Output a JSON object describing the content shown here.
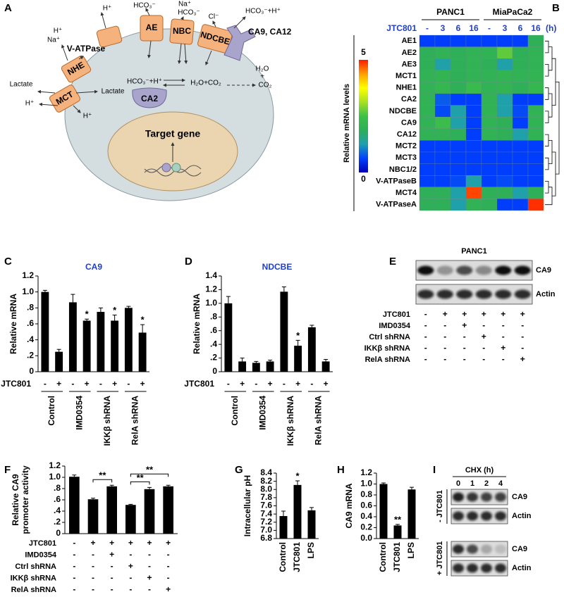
{
  "chart_data": [
    {
      "type": "heatmap",
      "panel": "B",
      "groups": [
        "PANC1",
        "MiaPaCa2"
      ],
      "row_label": "JTC801",
      "categories": [
        "-",
        "3",
        "6",
        "16",
        "-",
        "3",
        "6",
        "16"
      ],
      "unit": "(h)",
      "label_color": "#1f3fcc",
      "rows": [
        "AE1",
        "AE2",
        "AE3",
        "MCT1",
        "NHE1",
        "CA2",
        "NDCBE",
        "CA9",
        "CA12",
        "MCT2",
        "MCT3",
        "NBC1/2",
        "V-ATPaseB",
        "MCT4",
        "V-ATPaseA"
      ],
      "values": [
        [
          0.6,
          0.6,
          0.6,
          0.6,
          0.6,
          0.6,
          0.6,
          1.9
        ],
        [
          1.9,
          2.0,
          1.9,
          2.0,
          2.0,
          2.7,
          1.9,
          2.0
        ],
        [
          1.9,
          1.3,
          1.9,
          2.0,
          1.9,
          1.3,
          1.9,
          2.0
        ],
        [
          2.0,
          2.1,
          1.9,
          2.0,
          2.0,
          2.1,
          2.0,
          2.1
        ],
        [
          2.0,
          2.2,
          1.9,
          2.3,
          2.0,
          2.1,
          1.9,
          2.2
        ],
        [
          2.0,
          0.8,
          0.6,
          0.6,
          2.0,
          1.3,
          0.6,
          0.6
        ],
        [
          2.0,
          0.7,
          1.3,
          0.6,
          2.0,
          1.3,
          0.7,
          2.0
        ],
        [
          2.0,
          2.4,
          1.3,
          0.6,
          2.0,
          1.9,
          0.6,
          2.0
        ],
        [
          2.0,
          2.0,
          1.9,
          0.6,
          2.0,
          1.9,
          1.3,
          2.0
        ],
        [
          0.6,
          0.6,
          0.6,
          0.6,
          0.6,
          0.6,
          0.6,
          0.6
        ],
        [
          0.6,
          0.6,
          0.6,
          0.6,
          0.6,
          0.6,
          0.6,
          0.6
        ],
        [
          0.6,
          0.6,
          0.6,
          0.6,
          0.6,
          0.6,
          0.6,
          0.6
        ],
        [
          0.6,
          0.6,
          0.7,
          1.3,
          0.6,
          0.7,
          0.6,
          0.6
        ],
        [
          1.9,
          1.9,
          1.3,
          4.8,
          1.9,
          1.9,
          1.3,
          1.9
        ],
        [
          1.9,
          1.9,
          1.3,
          2.0,
          1.9,
          0.6,
          0.6,
          4.9
        ]
      ],
      "colorbar_label": "Relative mRNA levels",
      "zlim": [
        0,
        5
      ],
      "zticks": [
        0,
        5
      ],
      "colorscale": [
        "#0000b4",
        "#0040ff",
        "#1f9fb0",
        "#2eae58",
        "#3cc048",
        "#a6e022",
        "#ffff00",
        "#ffa000",
        "#ff1a00"
      ]
    },
    {
      "type": "bar",
      "panel": "C",
      "title": "CA9",
      "title_color": "#1f3fcc",
      "ylabel": [
        "Relative mRNA"
      ],
      "color": "#000000",
      "ylim": [
        0,
        1.2
      ],
      "yticks": [
        0,
        {
          "value": 0.2,
          "label": ".2"
        },
        {
          "value": 0.4,
          "label": ".4"
        },
        {
          "value": 0.6,
          "label": ".6"
        },
        {
          "value": 0.8,
          "label": ".8"
        },
        {
          "value": 1,
          "label": "1.0"
        },
        1.2
      ],
      "row_label": "JTC801",
      "categories": [
        "-",
        "+",
        "-",
        "+",
        "-",
        "+",
        "-",
        "+"
      ],
      "groups": [
        "Control",
        "IMD0354",
        "IKKβ shRNA",
        "RelA shRNA"
      ],
      "values": [
        1.0,
        0.25,
        0.87,
        0.64,
        0.75,
        0.64,
        0.8,
        0.49
      ],
      "errors": [
        0.02,
        0.03,
        0.1,
        0.02,
        0.05,
        0.07,
        0.02,
        0.1
      ],
      "annotations": [
        {
          "bar": 3,
          "text": "*"
        },
        {
          "bar": 5,
          "text": "*"
        },
        {
          "bar": 7,
          "text": "*"
        }
      ]
    },
    {
      "type": "bar",
      "panel": "D",
      "title": "NDCBE",
      "title_color": "#1f3fcc",
      "ylabel": [
        "Relative mRNA"
      ],
      "color": "#000000",
      "ylim": [
        0,
        1.4
      ],
      "yticks": [
        0,
        {
          "value": 0.2,
          "label": ".2"
        },
        {
          "value": 0.4,
          "label": ".4"
        },
        {
          "value": 0.6,
          "label": ".6"
        },
        {
          "value": 0.8,
          "label": ".8"
        },
        {
          "value": 1,
          "label": "1.0"
        },
        1.2,
        1.4
      ],
      "row_label": "JTC801",
      "categories": [
        "-",
        "+",
        "-",
        "+",
        "-",
        "+",
        "-",
        "+"
      ],
      "groups": [
        "Control",
        "IMD0354",
        "IKKβ shRNA",
        "RelA shRNA"
      ],
      "values": [
        1.0,
        0.15,
        0.13,
        0.15,
        1.17,
        0.38,
        0.65,
        0.15
      ],
      "errors": [
        0.1,
        0.05,
        0.02,
        0.02,
        0.07,
        0.08,
        0.03,
        0.03
      ],
      "annotations": [
        {
          "bar": 5,
          "text": "*"
        }
      ]
    },
    {
      "type": "bar",
      "panel": "F",
      "ylabel": [
        "Relative CA9",
        "promoter activity"
      ],
      "color": "#000000",
      "ylim": [
        0,
        1.2
      ],
      "yticks": [
        0,
        {
          "value": 0.2,
          "label": ".2"
        },
        {
          "value": 0.4,
          "label": ".4"
        },
        {
          "value": 0.6,
          "label": ".6"
        },
        {
          "value": 0.8,
          "label": ".8"
        },
        {
          "value": 1,
          "label": "1.0"
        },
        1.2
      ],
      "values": [
        1.01,
        0.61,
        0.84,
        0.51,
        0.79,
        0.84
      ],
      "errors": [
        0.03,
        0.02,
        0.02,
        0.01,
        0.03,
        0.02
      ],
      "conditions": [
        {
          "name": "JTC801",
          "signs": [
            "-",
            "+",
            "+",
            "+",
            "+",
            "+"
          ]
        },
        {
          "name": "IMD0354",
          "signs": [
            "-",
            "-",
            "+",
            "-",
            "-",
            "-"
          ]
        },
        {
          "name": "Ctrl shRNA",
          "signs": [
            "-",
            "-",
            "-",
            "+",
            "-",
            "-"
          ]
        },
        {
          "name": "IKKβ shRNA",
          "signs": [
            "-",
            "-",
            "-",
            "-",
            "+",
            "-"
          ]
        },
        {
          "name": "RelA shRNA",
          "signs": [
            "-",
            "-",
            "-",
            "-",
            "-",
            "+"
          ]
        }
      ],
      "brackets": [
        {
          "from": 1,
          "to": 2,
          "text": "**"
        },
        {
          "from": 3,
          "to": 4,
          "text": "**"
        },
        {
          "from": 3,
          "to": 5,
          "text": "**"
        }
      ]
    },
    {
      "type": "bar",
      "panel": "G",
      "ylabel": [
        "Intracellular pH"
      ],
      "color": "#000000",
      "ylim": [
        6.8,
        8.4
      ],
      "yticks": [
        6.8,
        {
          "value": 7,
          "label": "7.0"
        },
        7.2,
        7.4,
        7.6,
        7.8,
        {
          "value": 8,
          "label": "8.0"
        },
        8.2,
        8.4
      ],
      "categories": [
        "Control",
        "JTC801",
        "LPS"
      ],
      "values": [
        7.35,
        8.11,
        7.49
      ],
      "errors": [
        0.12,
        0.1,
        0.07
      ],
      "annotations": [
        {
          "bar": 1,
          "text": "*"
        }
      ]
    },
    {
      "type": "bar",
      "panel": "H",
      "ylabel": [
        "CA9 mRNA"
      ],
      "color": "#000000",
      "ylim": [
        0,
        1.2
      ],
      "yticks": [
        {
          "value": 0,
          "label": "0.0"
        },
        0.2,
        0.4,
        0.6,
        0.8,
        {
          "value": 1,
          "label": "1.0"
        },
        1.2
      ],
      "categories": [
        "Control",
        "JTC801",
        "LPS"
      ],
      "values": [
        1.0,
        0.24,
        0.9
      ],
      "errors": [
        0.02,
        0.02,
        0.04
      ],
      "annotations": [
        {
          "bar": 1,
          "text": "**"
        }
      ]
    }
  ],
  "diagram": {
    "panel": "A",
    "labels": [
      "H⁺",
      "HCO₃⁻",
      "Na⁺",
      "HCO₃⁻",
      "Cl⁻",
      "HCO₃⁻+H⁺",
      "V-ATPase",
      "AE",
      "NBC",
      "NDCBE",
      "CA9, CA12",
      "H⁺",
      "Na⁺",
      "NHE",
      "Lactate",
      "H⁺",
      "MCT",
      "Lactate",
      "H⁺",
      "HCO₃⁻+H⁺",
      "H₂O+CO₂",
      "CA2",
      "H₂O",
      "+",
      "CO₂",
      "Target gene"
    ]
  },
  "blots": [
    {
      "panel": "E",
      "title": "PANC1",
      "bands": [
        "CA9",
        "Actin"
      ],
      "conditions": [
        {
          "name": "JTC801",
          "signs": [
            "-",
            "+",
            "+",
            "+",
            "+",
            "+"
          ]
        },
        {
          "name": "IMD0354",
          "signs": [
            "-",
            "-",
            "+",
            "-",
            "-",
            "-"
          ]
        },
        {
          "name": "Ctrl shRNA",
          "signs": [
            "-",
            "-",
            "-",
            "+",
            "-",
            "-"
          ]
        },
        {
          "name": "IKKβ shRNA",
          "signs": [
            "-",
            "-",
            "-",
            "-",
            "+",
            "-"
          ]
        },
        {
          "name": "RelA shRNA",
          "signs": [
            "-",
            "-",
            "-",
            "-",
            "-",
            "+"
          ]
        }
      ]
    },
    {
      "panel": "I",
      "title": "CHX (h)",
      "lanes": [
        "0",
        "1",
        "2",
        "4"
      ],
      "groups": [
        {
          "label": "- JTC801",
          "bands": [
            "CA9",
            "Actin"
          ]
        },
        {
          "label": "+ JTC801",
          "bands": [
            "CA9",
            "Actin"
          ]
        }
      ]
    }
  ]
}
